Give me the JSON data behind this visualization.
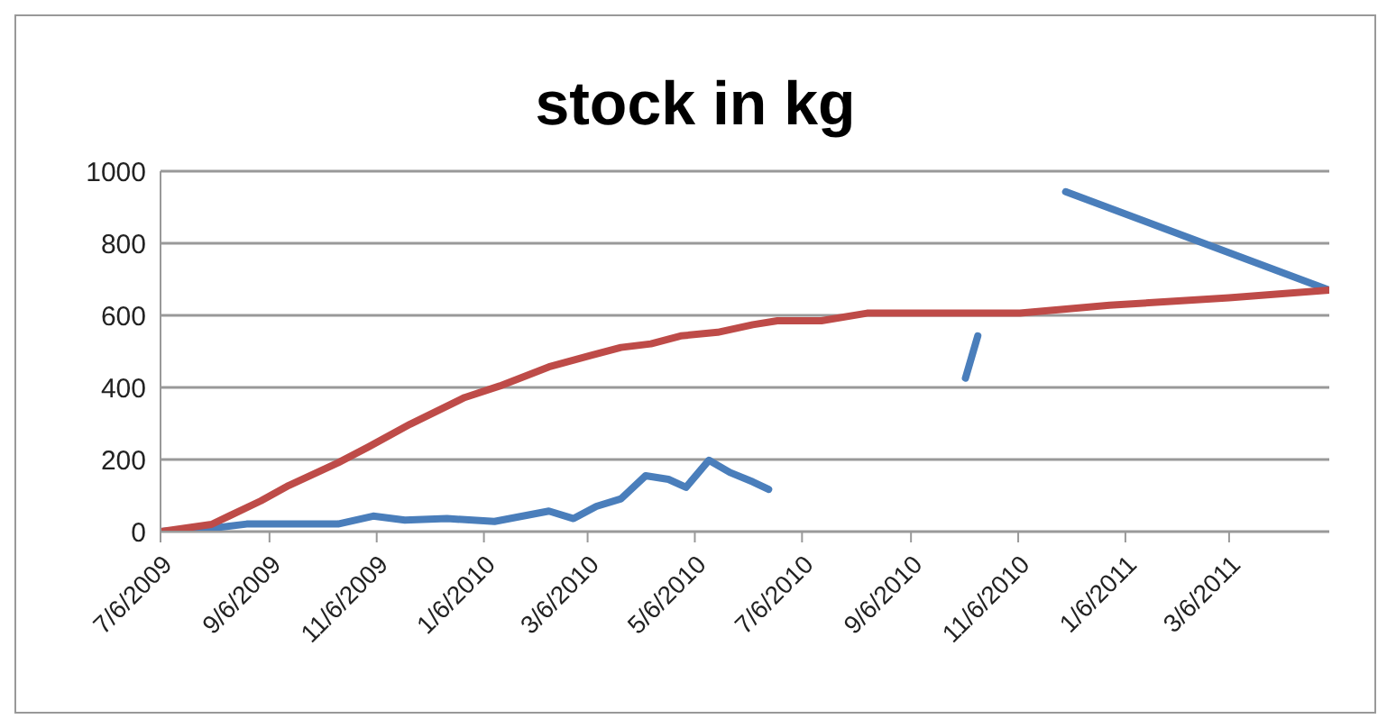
{
  "chart_data": {
    "type": "line",
    "title": "stock in kg",
    "xlim": [
      "2009-07-06",
      "2011-05-02"
    ],
    "xticks": [
      {
        "value": "2009-07-06",
        "label": "7/6/2009"
      },
      {
        "value": "2009-09-06",
        "label": "9/6/2009"
      },
      {
        "value": "2009-11-06",
        "label": "11/6/2009"
      },
      {
        "value": "2010-01-06",
        "label": "1/6/2010"
      },
      {
        "value": "2010-03-06",
        "label": "3/6/2010"
      },
      {
        "value": "2010-05-06",
        "label": "5/6/2010"
      },
      {
        "value": "2010-07-06",
        "label": "7/6/2010"
      },
      {
        "value": "2010-09-06",
        "label": "9/6/2010"
      },
      {
        "value": "2010-11-06",
        "label": "11/6/2010"
      },
      {
        "value": "2011-01-06",
        "label": "1/6/2011"
      },
      {
        "value": "2011-03-06",
        "label": "3/6/2011"
      }
    ],
    "ylim": [
      0,
      1000
    ],
    "yticks": [
      0,
      200,
      400,
      600,
      800,
      1000
    ],
    "grid": "y",
    "series": [
      {
        "color": "#4a7ebb",
        "x": [
          "2009-07-06",
          "2009-08-07",
          "2009-08-24",
          "2009-10-15",
          "2009-11-04",
          "2009-11-22",
          "2009-12-16",
          "2010-01-12",
          "2010-02-12",
          "2010-02-26",
          "2010-03-11",
          "2010-03-25",
          "2010-04-08",
          "2010-04-21",
          "2010-05-01",
          "2010-05-14",
          "2010-05-26",
          "2010-06-08",
          "2010-06-17",
          "2010-08-01",
          "2010-10-07",
          "2010-10-14",
          "2010-11-10",
          "2010-12-03",
          "2011-05-02"
        ],
        "values": [
          0,
          11,
          21,
          21,
          43,
          32,
          36,
          28,
          57,
          36,
          70,
          91,
          155,
          145,
          123,
          198,
          164,
          138,
          117,
          null,
          426,
          543,
          null,
          943,
          670
        ]
      },
      {
        "color": "#be4b48",
        "x": [
          "2009-07-06",
          "2009-08-04",
          "2009-09-01",
          "2009-09-17",
          "2009-10-15",
          "2009-11-01",
          "2009-11-25",
          "2009-12-26",
          "2010-01-15",
          "2010-02-12",
          "2010-03-08",
          "2010-03-25",
          "2010-04-11",
          "2010-04-28",
          "2010-05-19",
          "2010-06-08",
          "2010-06-22",
          "2010-07-17",
          "2010-08-12",
          "2010-11-07",
          "2010-12-28",
          "2011-03-06",
          "2011-05-02"
        ],
        "values": [
          0,
          20,
          85,
          128,
          191,
          234,
          298,
          372,
          404,
          457,
          489,
          511,
          521,
          543,
          553,
          574,
          585,
          585,
          606,
          606,
          628,
          649,
          670
        ]
      }
    ]
  }
}
